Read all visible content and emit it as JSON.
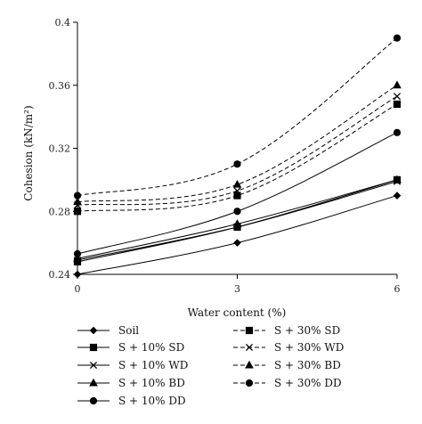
{
  "chart_data": {
    "type": "line",
    "title": "",
    "xlabel": "Water content (%)",
    "ylabel": "Cohesion (kN/m²)",
    "x": [
      0,
      3,
      6
    ],
    "xticks": [
      "0",
      "3",
      "6"
    ],
    "xlim": [
      0,
      6
    ],
    "ylim": [
      0.24,
      0.4
    ],
    "yticks": [
      "0.24",
      "0.28",
      "0.32",
      "0.36",
      "0.4"
    ],
    "grid": false,
    "legend_position": "bottom",
    "series": [
      {
        "name": "Soil",
        "values": [
          0.24,
          0.26,
          0.29
        ],
        "marker": "diamond",
        "line": "solid"
      },
      {
        "name": "S + 10% SD",
        "values": [
          0.248,
          0.27,
          0.3
        ],
        "marker": "square",
        "line": "solid"
      },
      {
        "name": "S + 10% WD",
        "values": [
          0.249,
          0.27,
          0.299
        ],
        "marker": "x",
        "line": "solid"
      },
      {
        "name": "S + 10% BD",
        "values": [
          0.25,
          0.272,
          0.3
        ],
        "marker": "triangle",
        "line": "solid"
      },
      {
        "name": "S + 10% DD",
        "values": [
          0.253,
          0.28,
          0.33
        ],
        "marker": "circle",
        "line": "solid"
      },
      {
        "name": "S + 30% SD",
        "values": [
          0.28,
          0.29,
          0.348
        ],
        "marker": "square",
        "line": "dashed"
      },
      {
        "name": "S + 30% WD",
        "values": [
          0.284,
          0.293,
          0.353
        ],
        "marker": "x",
        "line": "dashed"
      },
      {
        "name": "S + 30% BD",
        "values": [
          0.286,
          0.297,
          0.36
        ],
        "marker": "triangle",
        "line": "dashed"
      },
      {
        "name": "S + 30% DD",
        "values": [
          0.29,
          0.31,
          0.39
        ],
        "marker": "circle",
        "line": "dashed"
      }
    ]
  }
}
